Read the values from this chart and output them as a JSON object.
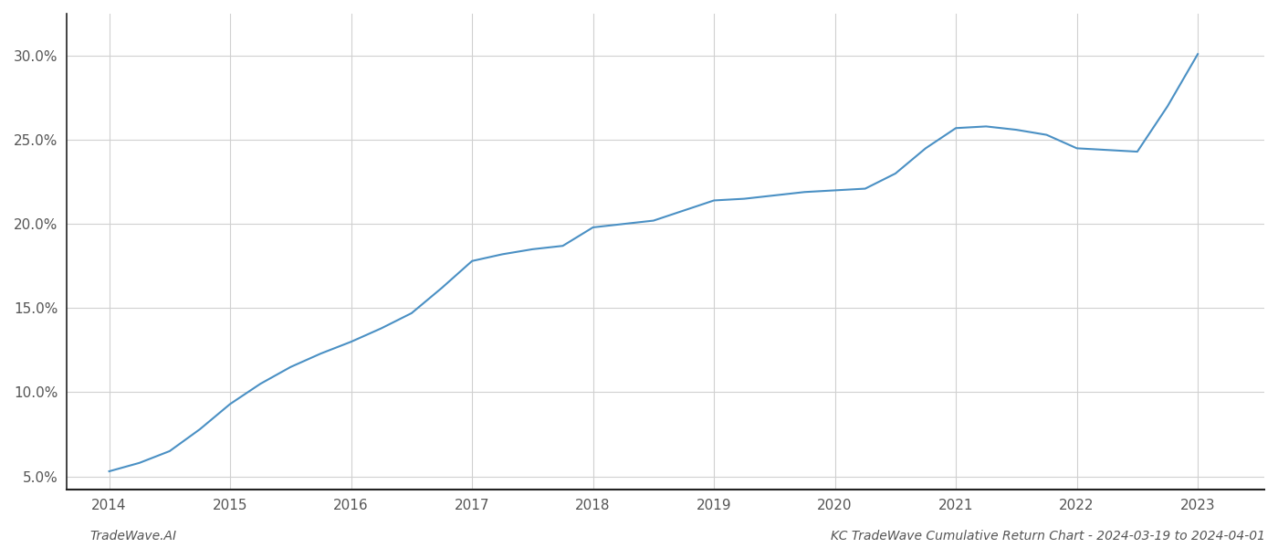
{
  "x_values": [
    2014.0,
    2014.25,
    2014.5,
    2014.75,
    2015.0,
    2015.25,
    2015.5,
    2015.75,
    2016.0,
    2016.25,
    2016.5,
    2016.75,
    2017.0,
    2017.25,
    2017.5,
    2017.75,
    2018.0,
    2018.25,
    2018.5,
    2018.75,
    2019.0,
    2019.25,
    2019.5,
    2019.75,
    2020.0,
    2020.25,
    2020.5,
    2020.75,
    2021.0,
    2021.25,
    2021.5,
    2021.75,
    2022.0,
    2022.25,
    2022.5,
    2022.75,
    2023.0
  ],
  "y_values": [
    5.3,
    5.8,
    6.5,
    7.8,
    9.3,
    10.5,
    11.5,
    12.3,
    13.0,
    13.8,
    14.7,
    16.2,
    17.8,
    18.2,
    18.5,
    18.7,
    19.8,
    20.0,
    20.2,
    20.8,
    21.4,
    21.5,
    21.7,
    21.9,
    22.0,
    22.1,
    23.0,
    24.5,
    25.7,
    25.8,
    25.6,
    25.3,
    24.5,
    24.4,
    24.3,
    27.0,
    30.1
  ],
  "line_color": "#4a90c4",
  "line_width": 1.5,
  "xlim": [
    2013.65,
    2023.55
  ],
  "ylim": [
    4.2,
    32.5
  ],
  "yticks": [
    5.0,
    10.0,
    15.0,
    20.0,
    25.0,
    30.0
  ],
  "xticks": [
    2014,
    2015,
    2016,
    2017,
    2018,
    2019,
    2020,
    2021,
    2022,
    2023
  ],
  "grid_color": "#d0d0d0",
  "background_color": "#ffffff",
  "watermark_left": "TradeWave.AI",
  "watermark_right": "KC TradeWave Cumulative Return Chart - 2024-03-19 to 2024-04-01",
  "tick_fontsize": 11,
  "watermark_fontsize": 10,
  "spine_color": "#222222",
  "tick_color": "#555555"
}
